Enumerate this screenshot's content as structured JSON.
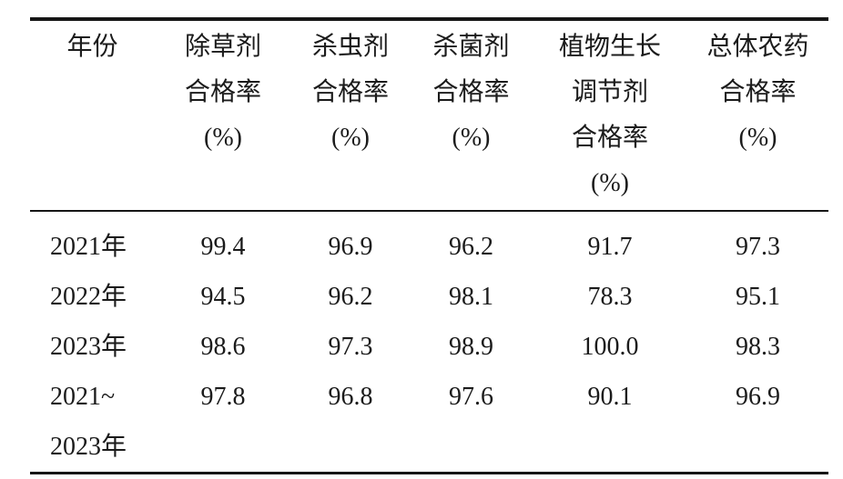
{
  "table": {
    "columns": [
      {
        "id": "year",
        "label_lines": [
          "年份",
          "",
          "",
          ""
        ]
      },
      {
        "id": "herbicide",
        "label_lines": [
          "除草剂",
          "合格率",
          "(%)",
          ""
        ]
      },
      {
        "id": "insecticide",
        "label_lines": [
          "杀虫剂",
          "合格率",
          "(%)",
          ""
        ]
      },
      {
        "id": "fungicide",
        "label_lines": [
          "杀菌剂",
          "合格率",
          "(%)",
          ""
        ]
      },
      {
        "id": "plant-growth-regulator",
        "label_lines": [
          "植物生长",
          "调节剂",
          "合格率",
          "(%)"
        ]
      },
      {
        "id": "overall",
        "label_lines": [
          "总体农药",
          "合格率",
          "(%)",
          ""
        ]
      }
    ],
    "rows": [
      {
        "year_lines": [
          "2021年",
          ""
        ],
        "values": [
          "99.4",
          "96.9",
          "96.2",
          "91.7",
          "97.3"
        ]
      },
      {
        "year_lines": [
          "2022年",
          ""
        ],
        "values": [
          "94.5",
          "96.2",
          "98.1",
          "78.3",
          "95.1"
        ]
      },
      {
        "year_lines": [
          "2023年",
          ""
        ],
        "values": [
          "98.6",
          "97.3",
          "98.9",
          "100.0",
          "98.3"
        ]
      },
      {
        "year_lines": [
          "2021~",
          "2023年"
        ],
        "values": [
          "97.8",
          "96.8",
          "97.6",
          "90.1",
          "96.9"
        ]
      }
    ]
  }
}
